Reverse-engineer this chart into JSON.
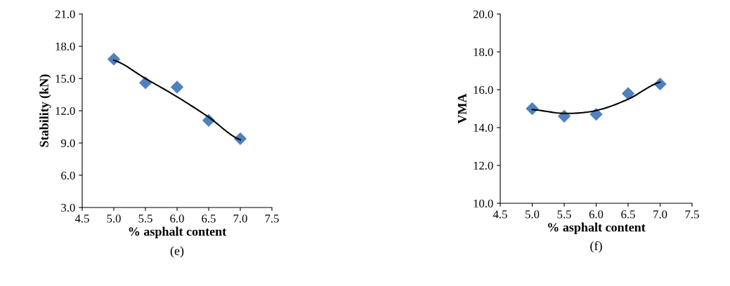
{
  "chart_data": [
    {
      "type": "scatter",
      "xlabel": "% asphalt content",
      "ylabel": "Stability (kN)",
      "annotations": [
        "(e)"
      ],
      "marker": "diamond",
      "grid": false,
      "legend": false,
      "xlim": [
        4.5,
        7.5
      ],
      "xticks": [
        4.5,
        {
          "value": 5,
          "label": "5.0"
        },
        5.5,
        {
          "value": 6,
          "label": "6.0"
        },
        6.5,
        {
          "value": 7,
          "label": "7.0"
        },
        7.5
      ],
      "ylim": [
        3,
        21
      ],
      "yticks": [
        {
          "value": 3,
          "label": "3.0"
        },
        {
          "value": 6,
          "label": "6.0"
        },
        {
          "value": 9,
          "label": "9.0"
        },
        {
          "value": 12,
          "label": "12.0"
        },
        {
          "value": 15,
          "label": "15.0"
        },
        {
          "value": 18,
          "label": "18.0"
        },
        {
          "value": 21,
          "label": "21.0"
        }
      ],
      "series": [
        {
          "color": "#4f81bd",
          "x": [
            5.0,
            5.5,
            6.0,
            6.5,
            7.0
          ],
          "values": [
            16.8,
            14.6,
            14.2,
            11.1,
            9.4
          ]
        },
        {
          "type": "line",
          "color": "#000000",
          "marker": "none",
          "x": [
            5.0,
            5.5,
            6.0,
            6.5,
            7.0
          ],
          "values": [
            16.7,
            15.0,
            13.3,
            11.4,
            9.3
          ]
        }
      ]
    },
    {
      "type": "scatter",
      "xlabel": "% asphalt content",
      "ylabel": "VMA",
      "annotations": [
        "(f)"
      ],
      "marker": "diamond",
      "grid": false,
      "legend": false,
      "xlim": [
        4.5,
        7.5
      ],
      "xticks": [
        4.5,
        {
          "value": 5,
          "label": "5.0"
        },
        5.5,
        {
          "value": 6,
          "label": "6.0"
        },
        6.5,
        {
          "value": 7,
          "label": "7.0"
        },
        7.5
      ],
      "ylim": [
        10,
        20
      ],
      "yticks": [
        {
          "value": 10,
          "label": "10.0"
        },
        {
          "value": 12,
          "label": "12.0"
        },
        {
          "value": 14,
          "label": "14.0"
        },
        {
          "value": 16,
          "label": "16.0"
        },
        {
          "value": 18,
          "label": "18.0"
        },
        {
          "value": 20,
          "label": "20.0"
        }
      ],
      "series": [
        {
          "color": "#4f81bd",
          "x": [
            5.0,
            5.5,
            6.0,
            6.5,
            7.0
          ],
          "values": [
            15.0,
            14.6,
            14.7,
            15.8,
            16.3
          ]
        },
        {
          "type": "line",
          "color": "#000000",
          "marker": "none",
          "x": [
            5.0,
            5.5,
            6.0,
            6.5,
            7.0
          ],
          "values": [
            14.95,
            14.75,
            14.9,
            15.5,
            16.4
          ]
        }
      ]
    }
  ]
}
